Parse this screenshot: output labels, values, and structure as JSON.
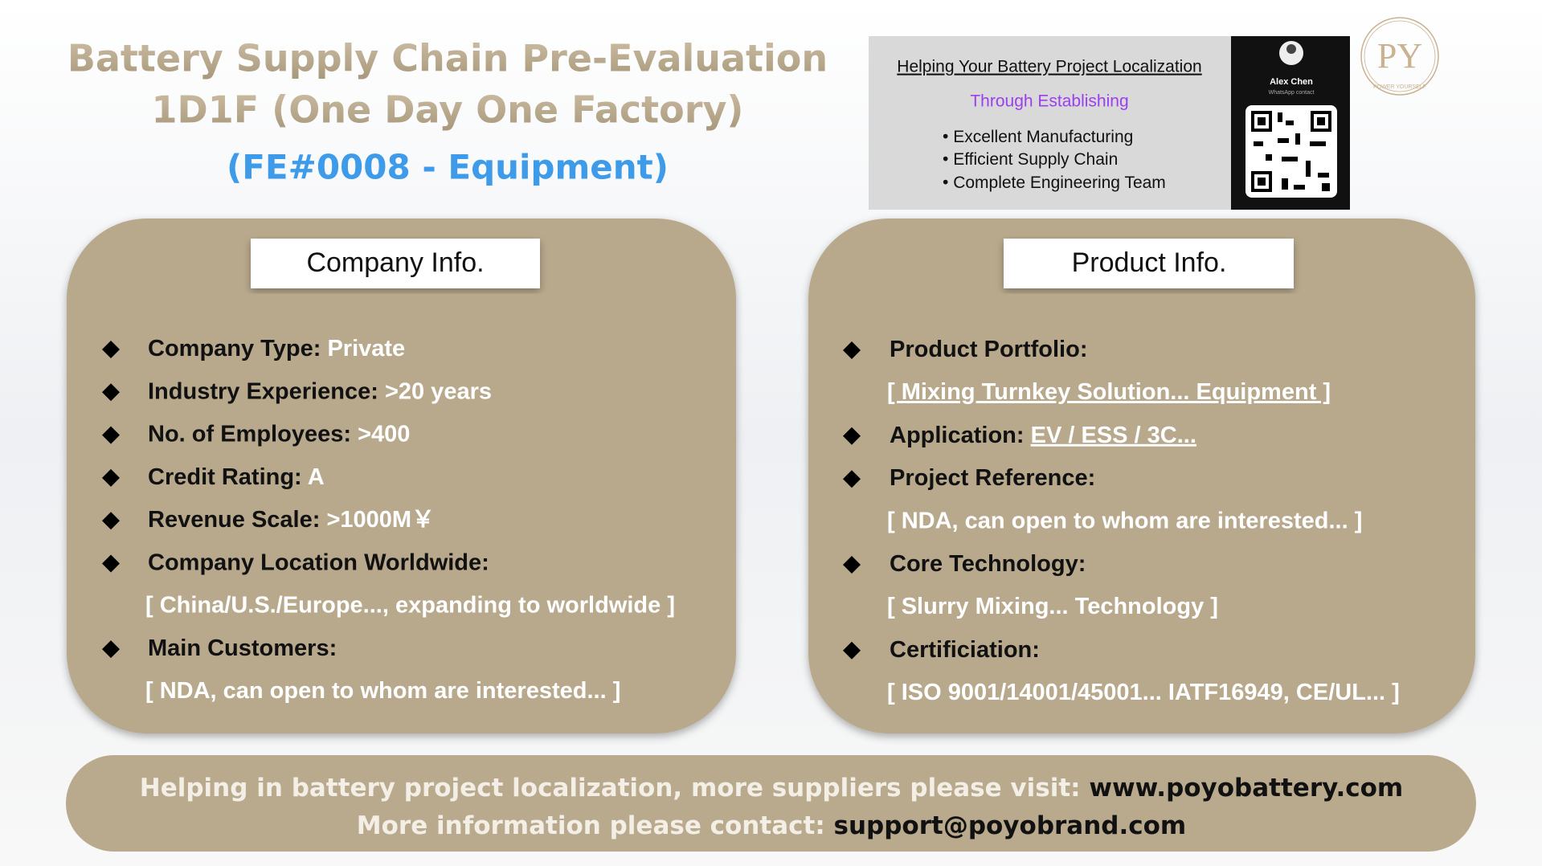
{
  "header": {
    "title_line1": "Battery Supply Chain Pre-Evaluation",
    "title_line2": "1D1F (One Day One Factory)",
    "subtitle": "(FE#0008 - Equipment)"
  },
  "promo": {
    "heading": "Helping Your Battery Project Localization",
    "subheading": "Through Establishing",
    "bullets": [
      "Excellent Manufacturing",
      "Efficient Supply Chain",
      "Complete Engineering Team"
    ],
    "contact_name": "Alex Chen",
    "contact_sub": "WhatsApp contact"
  },
  "logo": {
    "monogram": "PY",
    "motto": "POWER YOURSELF"
  },
  "company": {
    "title": "Company Info.",
    "items": [
      {
        "label": "Company Type:",
        "value": "Private"
      },
      {
        "label": "Industry Experience:",
        "value": ">20 years"
      },
      {
        "label": "No. of Employees:",
        "value": ">400"
      },
      {
        "label": "Credit Rating:",
        "value": "A"
      },
      {
        "label": "Revenue Scale:",
        "value": ">1000M￥"
      },
      {
        "label": "Company Location Worldwide:",
        "detail": "[ China/U.S./Europe..., expanding to worldwide ]"
      },
      {
        "label": "Main Customers:",
        "detail": "[ NDA, can open to whom are interested... ]"
      }
    ]
  },
  "product": {
    "title": "Product Info.",
    "items": [
      {
        "label": "Product Portfolio:",
        "detail": "[ Mixing Turnkey Solution... Equipment ]"
      },
      {
        "label": "Application:",
        "value": "EV / ESS / 3C..."
      },
      {
        "label": "Project Reference:",
        "detail": "[ NDA, can open to whom are interested...  ]"
      },
      {
        "label": "Core Technology:",
        "detail": "[ Slurry Mixing... Technology ]"
      },
      {
        "label": "Certificiation:",
        "detail": "[ ISO 9001/14001/45001... IATF16949, CE/UL... ]"
      }
    ]
  },
  "footer": {
    "line1": "Helping in battery project localization, more suppliers please visit:",
    "link1": "www.poyobattery.com",
    "line2": "More information please contact:",
    "link2": "support@poyobrand.com"
  }
}
